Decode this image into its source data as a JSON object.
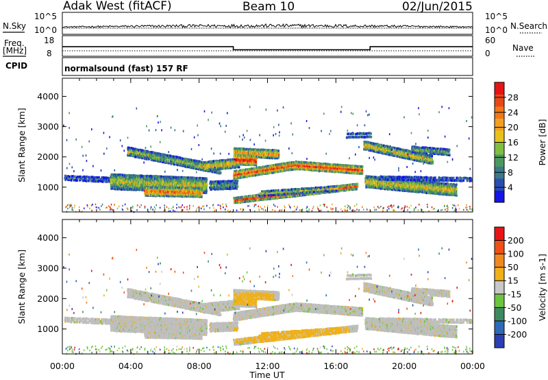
{
  "header": {
    "station": "Adak West (fitACF)",
    "beam": "Beam 10",
    "date": "02/Jun/2015"
  },
  "top_panels": {
    "nsky_label": "N.Sky",
    "nsky_ticks": [
      "10^5",
      "10^0"
    ],
    "nsearch_label": "N.Search",
    "nsearch_ticks": [
      "10^5",
      "10^0"
    ],
    "freq_label_1": "Freq.",
    "freq_label_2": "[MHz]",
    "freq_ticks": [
      "18",
      "8"
    ],
    "nave_label": "Nave",
    "nave_ticks": [
      "60",
      "0"
    ],
    "cpid_label": "CPID",
    "cpid_text": "normalsound (fast) 157 RF"
  },
  "chart_data": [
    {
      "type": "heatmap",
      "name": "power",
      "ylabel": "Slant Range [km]",
      "ylim": [
        180,
        4600
      ],
      "yticks": [
        "4000",
        "3000",
        "2000",
        "1000"
      ],
      "xticks": [
        "00:00",
        "04:00",
        "08:00",
        "12:00",
        "16:00",
        "20:00",
        "00:00"
      ],
      "xlabel": "Time UT",
      "colorbar_label": "Power [dB]",
      "colorbar_ticks": [
        "28",
        "24",
        "20",
        "16",
        "12",
        "8",
        "4"
      ],
      "colors": [
        "#1414e6",
        "#2a4fb0",
        "#3a7a8a",
        "#4a9a60",
        "#7fbf3f",
        "#e8c21a",
        "#f2a020",
        "#f07818",
        "#e84818",
        "#e61414"
      ],
      "freq_mhz": {
        "day": 10.5,
        "night": 12.5,
        "switch_hours": [
          10.0,
          18.0
        ]
      },
      "echo_bands": [
        {
          "t0": 0.1,
          "t1": 4.5,
          "r0": 1300,
          "r1": 1200,
          "w": 60,
          "level": 0.2,
          "density": 0.5
        },
        {
          "t0": 2.8,
          "t1": 8.4,
          "r0": 1180,
          "r1": 1050,
          "w": 230,
          "level": 0.45,
          "density": 0.85
        },
        {
          "t0": 4.8,
          "t1": 8.1,
          "r0": 860,
          "r1": 820,
          "w": 130,
          "level": 0.7,
          "density": 0.85
        },
        {
          "t0": 3.8,
          "t1": 9.2,
          "r0": 2180,
          "r1": 1580,
          "w": 120,
          "level": 0.4,
          "density": 0.75
        },
        {
          "t0": 8.2,
          "t1": 10.3,
          "r0": 1680,
          "r1": 1800,
          "w": 130,
          "level": 0.55,
          "density": 0.85
        },
        {
          "t0": 8.6,
          "t1": 10.2,
          "r0": 1050,
          "r1": 1080,
          "w": 120,
          "level": 0.3,
          "density": 0.65
        },
        {
          "t0": 10.0,
          "t1": 12.6,
          "r0": 2150,
          "r1": 2080,
          "w": 120,
          "level": 0.6,
          "density": 0.9
        },
        {
          "t0": 10.0,
          "t1": 11.3,
          "r0": 1900,
          "r1": 1880,
          "w": 140,
          "level": 0.85,
          "density": 0.95
        },
        {
          "t0": 10.0,
          "t1": 13.6,
          "r0": 1400,
          "r1": 1720,
          "w": 110,
          "level": 0.75,
          "density": 0.95
        },
        {
          "t0": 13.6,
          "t1": 17.5,
          "r0": 1720,
          "r1": 1560,
          "w": 110,
          "level": 0.8,
          "density": 0.95
        },
        {
          "t0": 10.0,
          "t1": 17.2,
          "r0": 560,
          "r1": 1020,
          "w": 75,
          "level": 0.75,
          "density": 0.92
        },
        {
          "t0": 11.5,
          "t1": 16.0,
          "r0": 780,
          "r1": 960,
          "w": 60,
          "level": 0.45,
          "density": 0.6
        },
        {
          "t0": 16.6,
          "t1": 18.0,
          "r0": 2700,
          "r1": 2720,
          "w": 55,
          "level": 0.35,
          "density": 0.75
        },
        {
          "t0": 17.6,
          "t1": 21.6,
          "r0": 2380,
          "r1": 1900,
          "w": 120,
          "level": 0.5,
          "density": 0.85
        },
        {
          "t0": 20.4,
          "t1": 22.6,
          "r0": 2250,
          "r1": 2150,
          "w": 80,
          "level": 0.35,
          "density": 0.7
        },
        {
          "t0": 17.7,
          "t1": 23.0,
          "r0": 1180,
          "r1": 900,
          "w": 170,
          "level": 0.5,
          "density": 0.85
        },
        {
          "t0": 18.5,
          "t1": 23.9,
          "r0": 1300,
          "r1": 1250,
          "w": 40,
          "level": 0.3,
          "density": 0.55
        }
      ]
    },
    {
      "type": "heatmap",
      "name": "velocity",
      "ylabel": "Slant Range [km]",
      "ylim": [
        180,
        4600
      ],
      "yticks": [
        "4000",
        "3000",
        "2000",
        "1000"
      ],
      "xticks": [
        "00:00",
        "04:00",
        "08:00",
        "12:00",
        "16:00",
        "20:00",
        "00:00"
      ],
      "xlabel": "Time UT",
      "colorbar_label": "Velocity [m s-1]",
      "colorbar_ticks": [
        "200",
        "100",
        "50",
        "15",
        "-15",
        "-50",
        "-100",
        "-200"
      ],
      "colors": [
        "#2b3fb3",
        "#2e6ab8",
        "#3d8a60",
        "#6cc53c",
        "#c8c8c8",
        "#f0b018",
        "#f08820",
        "#f05018",
        "#e81414"
      ],
      "ground_scatter": "#bfbfbf",
      "orange_regions": [
        {
          "t0": 10.0,
          "t1": 12.4,
          "r0": 1780,
          "r1": 2200
        },
        {
          "t0": 10.0,
          "t1": 16.8,
          "r0": 560,
          "r1": 1050
        }
      ]
    }
  ]
}
